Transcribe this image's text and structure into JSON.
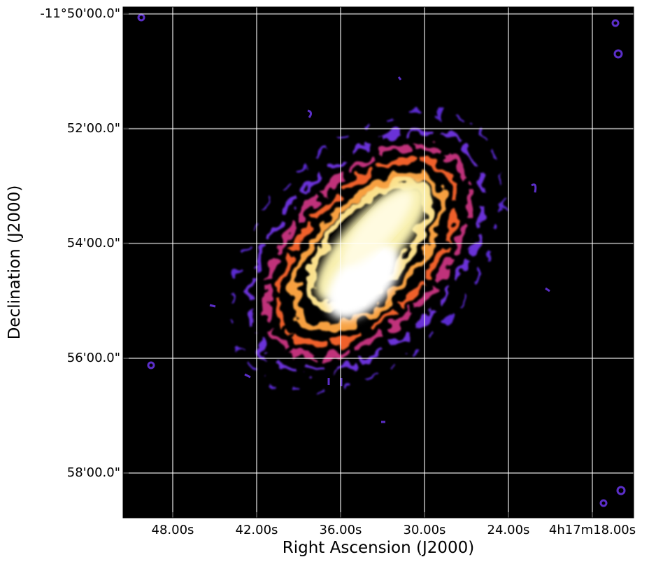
{
  "chart_data": {
    "type": "image",
    "x_label": "Right Ascension (J2000)",
    "y_label": "Declination (J2000)",
    "xlim": [
      51.55,
      15.05
    ],
    "xticks": [
      {
        "value": 48,
        "label": "48.00s"
      },
      {
        "value": 42,
        "label": "42.00s"
      },
      {
        "value": 36,
        "label": "36.00s"
      },
      {
        "value": 30,
        "label": "30.00s"
      },
      {
        "value": 24,
        "label": "24.00s"
      },
      {
        "value": 18,
        "label": "4h17m18.00s"
      }
    ],
    "ylim": [
      49.88,
      58.78
    ],
    "yticks": [
      {
        "value": 50,
        "label": "-11°50'00.0\""
      },
      {
        "value": 52,
        "label": "52'00.0\""
      },
      {
        "value": 54,
        "label": "54'00.0\""
      },
      {
        "value": 56,
        "label": "56'00.0\""
      },
      {
        "value": 58,
        "label": "58'00.0\""
      }
    ],
    "grid": true
  }
}
